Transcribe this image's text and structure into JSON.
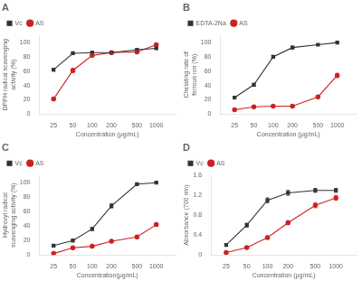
{
  "chart_data": [
    {
      "type": "line",
      "title": "A",
      "x": [
        25,
        50,
        100,
        200,
        500,
        1000
      ],
      "series": [
        {
          "name": "Vc",
          "color": "#333333",
          "marker": "square",
          "values": [
            62,
            85,
            86,
            86,
            90,
            92
          ],
          "errors": [
            2,
            1,
            1,
            1,
            1,
            1
          ]
        },
        {
          "name": "AS",
          "color": "#cc2222",
          "marker": "circle",
          "values": [
            21,
            61,
            82,
            86,
            87,
            97
          ],
          "errors": [
            2,
            3,
            2,
            1.5,
            2,
            1.5
          ]
        }
      ],
      "xlabel": "Concentration (μg/mL)",
      "ylabel": "DPPH radical scavenging activity (%)",
      "xlim": [
        15,
        2000
      ],
      "xticks": [
        25,
        50,
        100,
        200,
        500,
        1000
      ],
      "ylim": [
        0,
        110
      ],
      "yticks": [
        0,
        20,
        40,
        60,
        80,
        100
      ],
      "log": "x",
      "grid": false,
      "legend": "upper left"
    },
    {
      "type": "line",
      "title": "B",
      "x": [
        25,
        50,
        100,
        200,
        500,
        1000
      ],
      "series": [
        {
          "name": "EDTA-2Na",
          "color": "#333333",
          "marker": "square",
          "values": [
            23,
            41,
            80,
            93,
            97,
            100
          ],
          "errors": [
            2,
            2,
            2,
            2,
            1,
            0.5
          ]
        },
        {
          "name": "AS",
          "color": "#cc2222",
          "marker": "circle",
          "values": [
            6,
            10,
            11,
            11,
            24,
            54
          ],
          "errors": [
            1,
            1,
            1,
            1,
            2,
            3
          ]
        }
      ],
      "xlabel": "Concentration (μg/mL)",
      "ylabel": "Chelating rate of ferrous ion (%)",
      "xlim": [
        15,
        2000
      ],
      "xticks": [
        25,
        50,
        100,
        200,
        500,
        1000
      ],
      "ylim": [
        0,
        110
      ],
      "yticks": [
        0,
        20,
        40,
        60,
        80,
        100
      ],
      "log": "x",
      "grid": false,
      "legend": "upper left"
    },
    {
      "type": "line",
      "title": "C",
      "x": [
        25,
        50,
        100,
        200,
        500,
        1000
      ],
      "series": [
        {
          "name": "Vc",
          "color": "#333333",
          "marker": "square",
          "values": [
            13,
            20,
            36,
            68,
            98,
            100
          ],
          "errors": [
            1,
            2,
            2,
            3,
            1,
            0.5
          ]
        },
        {
          "name": "AS",
          "color": "#cc2222",
          "marker": "circle",
          "values": [
            2,
            10,
            12,
            19,
            25,
            42
          ],
          "errors": [
            1,
            1,
            1,
            2,
            2,
            2
          ]
        }
      ],
      "xlabel": "Concentration(μg/mL)",
      "ylabel": "Hydroxyl radical scavenging activity (%)",
      "xlim": [
        15,
        2000
      ],
      "xticks": [
        25,
        50,
        100,
        200,
        500,
        1000
      ],
      "ylim": [
        0,
        110
      ],
      "yticks": [
        0,
        20,
        40,
        60,
        80,
        100
      ],
      "log": "x",
      "grid": false,
      "legend": "upper left"
    },
    {
      "type": "line",
      "title": "D",
      "x": [
        25,
        50,
        100,
        200,
        500,
        1000
      ],
      "series": [
        {
          "name": "Vc",
          "color": "#333333",
          "marker": "square",
          "values": [
            0.2,
            0.6,
            1.1,
            1.25,
            1.3,
            1.3
          ],
          "errors": [
            0.02,
            0.04,
            0.05,
            0.05,
            0.04,
            0.04
          ]
        },
        {
          "name": "AS",
          "color": "#cc2222",
          "marker": "circle",
          "values": [
            0.05,
            0.15,
            0.35,
            0.65,
            1.0,
            1.15
          ],
          "errors": [
            0.01,
            0.02,
            0.03,
            0.04,
            0.05,
            0.05
          ]
        }
      ],
      "xlabel": "Concentration (μg/mL)",
      "ylabel": "Absorbance (700 nm)",
      "xlim": [
        15,
        2000
      ],
      "xticks": [
        25,
        50,
        100,
        200,
        500,
        1000
      ],
      "ylim": [
        0,
        1.6
      ],
      "yticks": [
        0,
        0.4,
        0.8,
        1.2,
        1.6
      ],
      "log": "x",
      "grid": false,
      "legend": "upper left"
    }
  ]
}
